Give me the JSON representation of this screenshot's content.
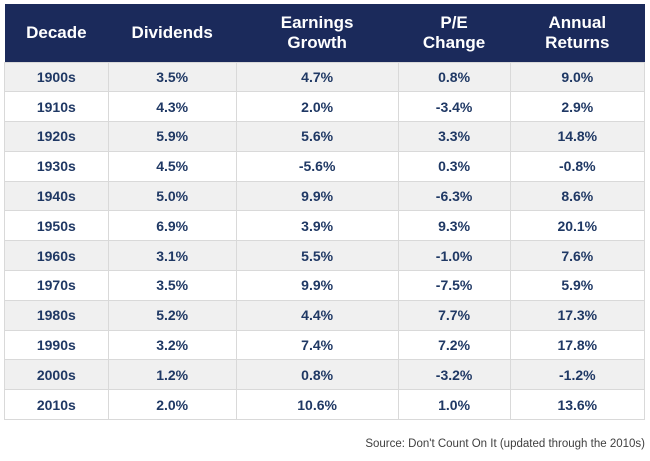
{
  "chart_data": {
    "type": "table",
    "columns": [
      "Decade",
      "Dividends",
      "Earnings Growth",
      "P/E Change",
      "Annual Returns"
    ],
    "rows": [
      [
        "1900s",
        "3.5%",
        "4.7%",
        "0.8%",
        "9.0%"
      ],
      [
        "1910s",
        "4.3%",
        "2.0%",
        "-3.4%",
        "2.9%"
      ],
      [
        "1920s",
        "5.9%",
        "5.6%",
        "3.3%",
        "14.8%"
      ],
      [
        "1930s",
        "4.5%",
        "-5.6%",
        "0.3%",
        "-0.8%"
      ],
      [
        "1940s",
        "5.0%",
        "9.9%",
        "-6.3%",
        "8.6%"
      ],
      [
        "1950s",
        "6.9%",
        "3.9%",
        "9.3%",
        "20.1%"
      ],
      [
        "1960s",
        "3.1%",
        "5.5%",
        "-1.0%",
        "7.6%"
      ],
      [
        "1970s",
        "3.5%",
        "9.9%",
        "-7.5%",
        "5.9%"
      ],
      [
        "1980s",
        "5.2%",
        "4.4%",
        "7.7%",
        "17.3%"
      ],
      [
        "1990s",
        "3.2%",
        "7.4%",
        "7.2%",
        "17.8%"
      ],
      [
        "2000s",
        "1.2%",
        "0.8%",
        "-3.2%",
        "-1.2%"
      ],
      [
        "2010s",
        "2.0%",
        "10.6%",
        "1.0%",
        "13.6%"
      ]
    ],
    "source": "Source: Don't Count On It (updated through the 2010s)",
    "layout": {
      "row_striping": "odd-rows-gray",
      "grid": true,
      "legend": "none"
    }
  },
  "colors": {
    "header_bg": "#1b2a5b",
    "header_text": "#ffffff",
    "cell_text": "#1f3864",
    "row_alt_bg": "#f0f0f0",
    "row_bg": "#ffffff",
    "grid_line": "#d9d9d9",
    "source_text": "#3f3f3f"
  }
}
